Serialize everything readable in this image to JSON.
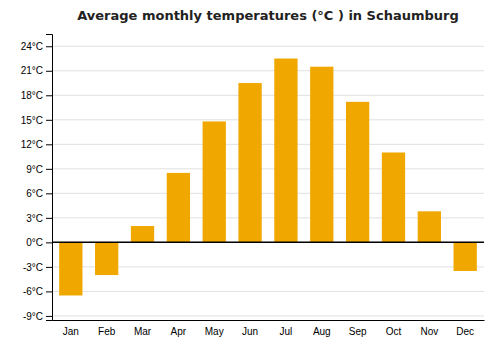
{
  "chart_data": {
    "type": "bar",
    "title": "Average monthly temperatures (°C ) in Schaumburg",
    "categories": [
      "Jan",
      "Feb",
      "Mar",
      "Apr",
      "May",
      "Jun",
      "Jul",
      "Aug",
      "Sep",
      "Oct",
      "Nov",
      "Dec"
    ],
    "values": [
      -6.5,
      -4.0,
      2.0,
      8.5,
      14.8,
      19.5,
      22.5,
      21.5,
      17.2,
      11.0,
      3.8,
      -3.5
    ],
    "color": "#F0A800",
    "ylim": [
      -9.5,
      25.5
    ],
    "yticks": [
      {
        "value": -9,
        "label": "-9°C"
      },
      {
        "value": -6,
        "label": "-6°C"
      },
      {
        "value": -3,
        "label": "-3°C"
      },
      {
        "value": 0,
        "label": "0°C"
      },
      {
        "value": 3,
        "label": "3°C"
      },
      {
        "value": 6,
        "label": "6°C"
      },
      {
        "value": 9,
        "label": "9°C"
      },
      {
        "value": 12,
        "label": "12°C"
      },
      {
        "value": 15,
        "label": "15°C"
      },
      {
        "value": 18,
        "label": "18°C"
      },
      {
        "value": 21,
        "label": "21°C"
      },
      {
        "value": 24,
        "label": "24°C"
      }
    ],
    "grid": true
  }
}
